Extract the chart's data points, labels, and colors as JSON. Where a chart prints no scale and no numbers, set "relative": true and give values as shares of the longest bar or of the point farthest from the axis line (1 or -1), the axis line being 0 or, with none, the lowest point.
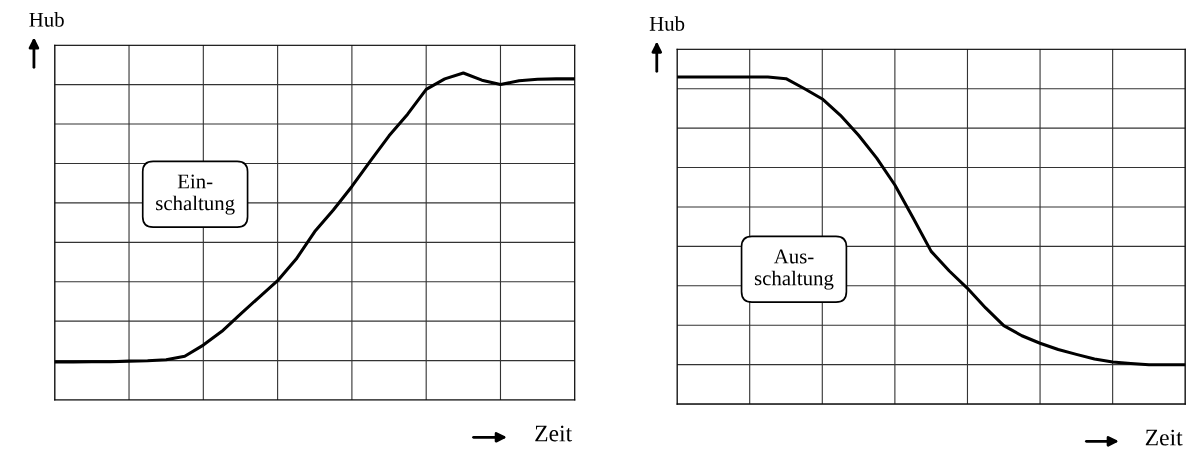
{
  "chart_data": [
    {
      "type": "line",
      "relative": true,
      "ylabel": "Hub",
      "xlabel": "Zeit",
      "grid": true,
      "legend": false,
      "marker": "none",
      "line_style": "solid",
      "tick_labels": false,
      "categories": [
        null,
        null,
        null,
        null,
        null,
        null,
        null,
        null,
        null,
        null,
        null,
        null,
        null,
        null,
        null,
        null,
        null,
        null,
        null,
        null,
        null,
        null,
        null,
        null,
        null,
        null,
        null,
        null,
        null
      ],
      "series": [
        {
          "color": "#000000",
          "values": [
            0.116,
            0.116,
            0.117,
            0.117,
            0.119,
            0.12,
            0.123,
            0.134,
            0.168,
            0.21,
            0.263,
            0.314,
            0.365,
            0.431,
            0.515,
            0.581,
            0.653,
            0.731,
            0.808,
            0.874,
            0.95,
            0.982,
            1,
            0.978,
            0.965,
            0.976,
            0.981,
            0.982,
            0.982
          ]
        }
      ],
      "annotations": [
        "Ein-\nschaltung"
      ]
    },
    {
      "type": "line",
      "relative": true,
      "ylabel": "Hub",
      "xlabel": "Zeit",
      "grid": true,
      "legend": false,
      "marker": "none",
      "line_style": "solid",
      "tick_labels": false,
      "categories": [
        null,
        null,
        null,
        null,
        null,
        null,
        null,
        null,
        null,
        null,
        null,
        null,
        null,
        null,
        null,
        null,
        null,
        null,
        null,
        null,
        null,
        null,
        null,
        null,
        null,
        null,
        null,
        null,
        null
      ],
      "series": [
        {
          "color": "#000000",
          "values": [
            1,
            1,
            1,
            1,
            1,
            1,
            0.995,
            0.965,
            0.933,
            0.883,
            0.822,
            0.752,
            0.67,
            0.57,
            0.467,
            0.407,
            0.354,
            0.294,
            0.24,
            0.209,
            0.186,
            0.167,
            0.152,
            0.138,
            0.129,
            0.124,
            0.12,
            0.12,
            0.12
          ]
        }
      ],
      "annotations": [
        "Aus-\nschaltung"
      ]
    }
  ]
}
